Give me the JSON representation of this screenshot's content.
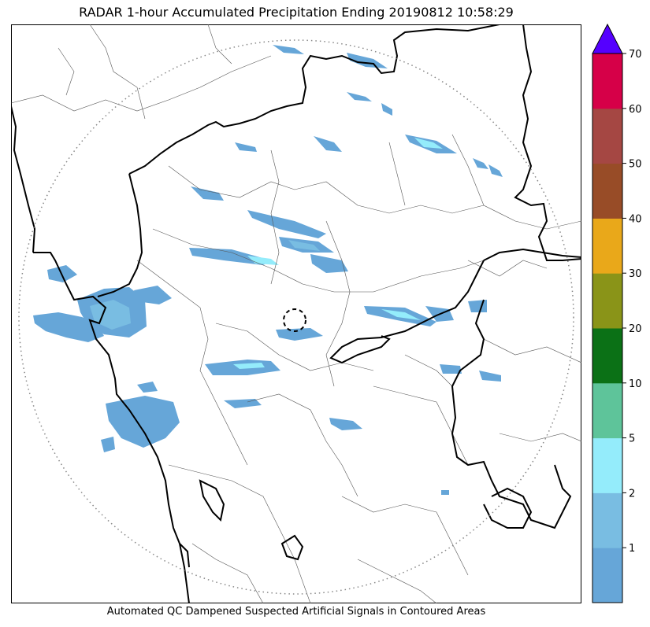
{
  "title": "RADAR 1-hour Accumulated Precipitation Ending 20190812 10:58:29",
  "footer": "Automated QC Dampened Suspected Artificial Signals in Contoured Areas",
  "colorbar": {
    "levels": [
      {
        "label": "",
        "color": "#66a6d8"
      },
      {
        "label": "1",
        "color": "#79bde2"
      },
      {
        "label": "2",
        "color": "#94ecfb"
      },
      {
        "label": "5",
        "color": "#5ec49a"
      },
      {
        "label": "10",
        "color": "#0b7116"
      },
      {
        "label": "20",
        "color": "#8a9418"
      },
      {
        "label": "30",
        "color": "#e9a81a"
      },
      {
        "label": "40",
        "color": "#984c27"
      },
      {
        "label": "50",
        "color": "#a54743"
      },
      {
        "label": "60",
        "color": "#d60048"
      }
    ],
    "top_label": "70",
    "overflow_color": "#5500ff"
  },
  "colors": {
    "precip_light": "#66a6d8",
    "precip_mid": "#79bde2",
    "precip_cyan": "#94ecfb",
    "boundary_thick": "#000000",
    "boundary_thin": "#555555",
    "range_ring": "#888888"
  }
}
